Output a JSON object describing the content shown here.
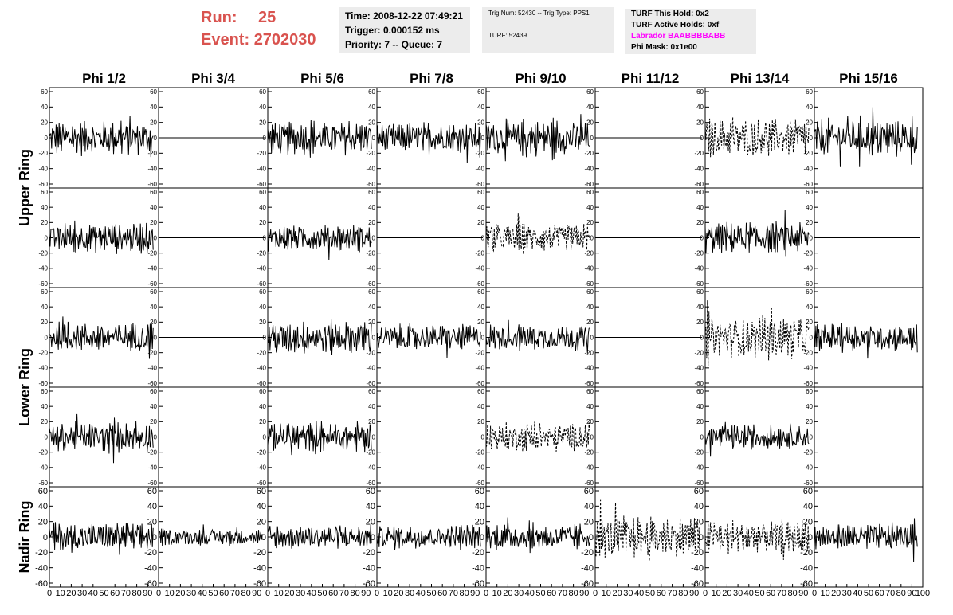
{
  "header": {
    "run_label": "Run:",
    "run_value": "25",
    "event_label": "Event:",
    "event_value": "2702030",
    "time": "Time: 2008-12-22 07:49:21",
    "trigger": "Trigger: 0.000152 ms",
    "priority": "Priority: 7 -- Queue: 7",
    "trig_num": "Trig Num: 52430 -- Trig Type: PPS1",
    "turf": "TURF: 52439",
    "turf_hold": "TURF This Hold: 0x2",
    "turf_active": "TURF Active Holds: 0xf",
    "labrador": "Labrador BAABBBBABB",
    "phi_mask": "Phi Mask: 0x1e00"
  },
  "colors": {
    "run_text": "#d9534f",
    "labrador": "#ff00ff",
    "info_bg": "#ececec"
  },
  "chart_data": {
    "type": "line",
    "columns": [
      "Phi 1/2",
      "Phi 3/4",
      "Phi 5/6",
      "Phi 7/8",
      "Phi 9/10",
      "Phi 11/12",
      "Phi 13/14",
      "Phi 15/16"
    ],
    "rows": [
      "Upper Ring",
      "Lower Ring",
      "Nadir Ring"
    ],
    "xlim": [
      0,
      100
    ],
    "ylim": [
      -60,
      60
    ],
    "y_ticks": [
      -60,
      -40,
      -20,
      0,
      20,
      40,
      60
    ],
    "x_tick_labels": [
      "0",
      "10",
      "20",
      "30",
      "40",
      "50",
      "60",
      "70",
      "80",
      "90",
      "100"
    ],
    "grid": false,
    "panel_rows": [
      [
        "noise:25",
        "flat",
        "noise:25",
        "noise:22",
        "noise:27",
        "flat",
        "dashed:28",
        "noise:28"
      ],
      [
        "noise:22",
        "flat",
        "noise:20",
        "flat",
        "dashed:22",
        "flat",
        "noise:23",
        "flat"
      ],
      [
        "noise:22",
        "flat",
        "noise:25",
        "noise:20",
        "noise:20",
        "flat",
        "dashed:32",
        "noise:20"
      ],
      [
        "noise:22",
        "flat",
        "noise:22",
        "flat",
        "dashed:22",
        "flat",
        "noise:18",
        "flat"
      ],
      [
        "noise:22",
        "noise:12",
        "noise:18",
        "noise:18",
        "noise:20",
        "dashed:32",
        "dashed:25",
        "noise:20"
      ]
    ]
  }
}
